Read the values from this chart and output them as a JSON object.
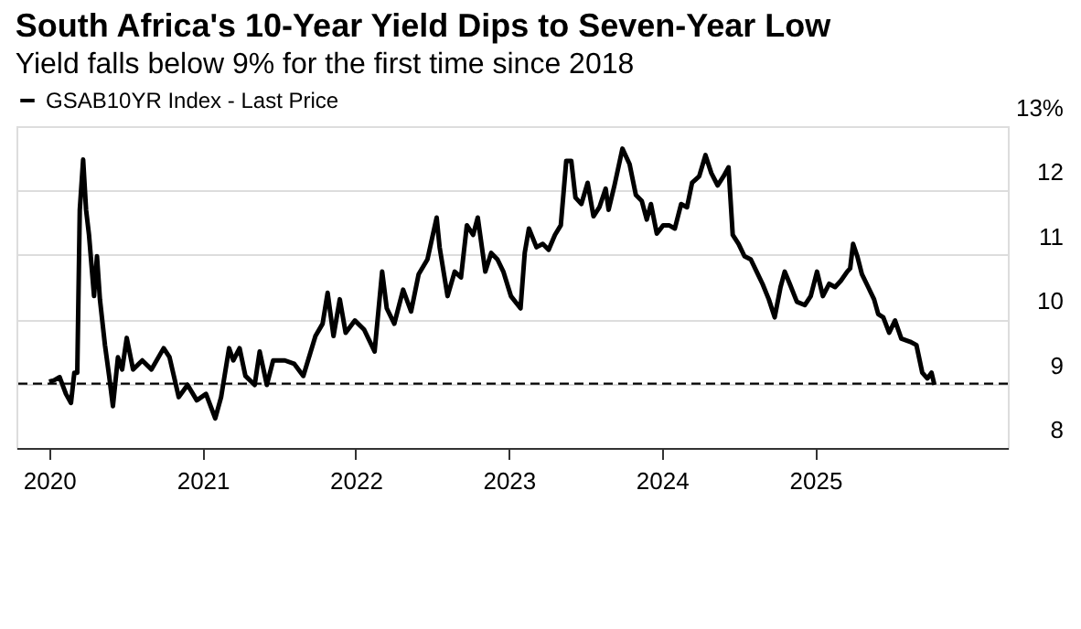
{
  "chart_data": {
    "type": "line",
    "title": "South Africa's 10-Year Yield Dips to Seven-Year Low",
    "subtitle": "Yield falls below 9% for the first time since 2018",
    "series": [
      {
        "name": "GSAB10YR Index - Last Price",
        "color": "#000000",
        "x": [
          "2020-01-01",
          "2020-01-12",
          "2020-01-26",
          "2020-02-10",
          "2020-02-22",
          "2020-03-01",
          "2020-03-08",
          "2020-03-14",
          "2020-03-22",
          "2020-03-29",
          "2020-04-05",
          "2020-04-17",
          "2020-04-24",
          "2020-05-01",
          "2020-05-13",
          "2020-05-23",
          "2020-06-01",
          "2020-06-13",
          "2020-06-23",
          "2020-07-04",
          "2020-07-19",
          "2020-08-10",
          "2020-09-01",
          "2020-09-30",
          "2020-10-14",
          "2020-11-05",
          "2020-11-26",
          "2020-12-18",
          "2021-01-09",
          "2021-01-31",
          "2021-02-14",
          "2021-03-05",
          "2021-03-15",
          "2021-03-30",
          "2021-04-13",
          "2021-05-05",
          "2021-05-17",
          "2021-06-03",
          "2021-06-18",
          "2021-07-16",
          "2021-08-07",
          "2021-08-29",
          "2021-09-27",
          "2021-10-14",
          "2021-10-26",
          "2021-11-09",
          "2021-11-24",
          "2021-12-08",
          "2021-12-30",
          "2022-01-21",
          "2022-02-15",
          "2022-03-05",
          "2022-03-16",
          "2022-04-03",
          "2022-04-24",
          "2022-05-13",
          "2022-05-31",
          "2022-06-21",
          "2022-07-13",
          "2022-07-20",
          "2022-08-08",
          "2022-08-25",
          "2022-09-09",
          "2022-09-23",
          "2022-10-08",
          "2022-10-19",
          "2022-11-06",
          "2022-11-20",
          "2022-12-05",
          "2022-12-19",
          "2023-01-06",
          "2023-01-29",
          "2023-02-08",
          "2023-02-18",
          "2023-03-08",
          "2023-03-23",
          "2023-04-06",
          "2023-04-21",
          "2023-05-05",
          "2023-05-18",
          "2023-05-30",
          "2023-06-09",
          "2023-06-23",
          "2023-07-08",
          "2023-07-22",
          "2023-08-05",
          "2023-08-20",
          "2023-08-27",
          "2023-09-10",
          "2023-09-29",
          "2023-10-16",
          "2023-10-31",
          "2023-11-14",
          "2023-11-26",
          "2023-12-06",
          "2023-12-20",
          "2024-01-04",
          "2024-01-18",
          "2024-02-01",
          "2024-02-16",
          "2024-03-01",
          "2024-03-13",
          "2024-03-30",
          "2024-04-14",
          "2024-04-28",
          "2024-05-13",
          "2024-05-27",
          "2024-06-08",
          "2024-06-18",
          "2024-07-02",
          "2024-07-16",
          "2024-07-31",
          "2024-08-14",
          "2024-08-28",
          "2024-09-12",
          "2024-09-26",
          "2024-10-10",
          "2024-10-20",
          "2024-11-01",
          "2024-11-18",
          "2024-12-07",
          "2024-12-21",
          "2025-01-05",
          "2025-01-19",
          "2025-02-03",
          "2025-02-17",
          "2025-03-03",
          "2025-03-18",
          "2025-03-25",
          "2025-04-01",
          "2025-04-11",
          "2025-04-22",
          "2025-05-07",
          "2025-05-21",
          "2025-05-31",
          "2025-06-12",
          "2025-06-26",
          "2025-07-10",
          "2025-07-25",
          "2025-08-15",
          "2025-08-30",
          "2025-09-13",
          "2025-09-25",
          "2025-10-05",
          "2025-10-12"
        ],
        "values": [
          9.03,
          9.05,
          9.1,
          8.84,
          8.7,
          9.17,
          9.17,
          11.7,
          12.48,
          11.7,
          11.31,
          10.36,
          10.98,
          10.31,
          9.6,
          9.12,
          8.65,
          9.41,
          9.22,
          9.71,
          9.22,
          9.36,
          9.22,
          9.55,
          9.41,
          8.79,
          8.98,
          8.74,
          8.84,
          8.46,
          8.79,
          9.55,
          9.36,
          9.55,
          9.12,
          8.98,
          9.5,
          8.98,
          9.36,
          9.36,
          9.31,
          9.12,
          9.74,
          9.93,
          10.41,
          9.74,
          10.31,
          9.79,
          9.98,
          9.84,
          9.5,
          10.74,
          10.17,
          9.93,
          10.46,
          10.12,
          10.7,
          10.93,
          11.58,
          11.12,
          10.36,
          10.74,
          10.65,
          11.46,
          11.31,
          11.58,
          10.74,
          11.03,
          10.93,
          10.74,
          10.36,
          10.17,
          11.03,
          11.41,
          11.12,
          11.17,
          11.08,
          11.31,
          11.46,
          12.46,
          12.46,
          11.89,
          11.79,
          12.12,
          11.6,
          11.74,
          12.03,
          11.7,
          12.08,
          12.65,
          12.41,
          11.93,
          11.84,
          11.55,
          11.79,
          11.33,
          11.46,
          11.46,
          11.41,
          11.79,
          11.74,
          12.12,
          12.22,
          12.55,
          12.27,
          12.08,
          12.22,
          12.36,
          11.31,
          11.17,
          10.98,
          10.93,
          10.74,
          10.55,
          10.31,
          10.03,
          10.5,
          10.74,
          10.55,
          10.27,
          10.22,
          10.36,
          10.74,
          10.36,
          10.55,
          10.5,
          10.6,
          10.74,
          10.79,
          11.17,
          10.98,
          10.7,
          10.5,
          10.31,
          10.08,
          10.03,
          9.79,
          9.98,
          9.7,
          9.65,
          9.6,
          9.17,
          9.08,
          9.17,
          8.98
        ]
      }
    ],
    "xlim": [
      "2019-10-15",
      "2026-04-05"
    ],
    "xticks": [
      "2020",
      "2021",
      "2022",
      "2023",
      "2024",
      "2025"
    ],
    "ylim": [
      8,
      13
    ],
    "yticks": [
      8,
      9,
      10,
      11,
      12,
      {
        "value": 13,
        "label": "13%"
      }
    ],
    "ref_lines": [
      {
        "axis": "y",
        "value": 9,
        "line_style": "dashed",
        "color": "#000000"
      }
    ],
    "grid": "y",
    "legend": "top left",
    "marker": "none",
    "line_style": "solid"
  }
}
